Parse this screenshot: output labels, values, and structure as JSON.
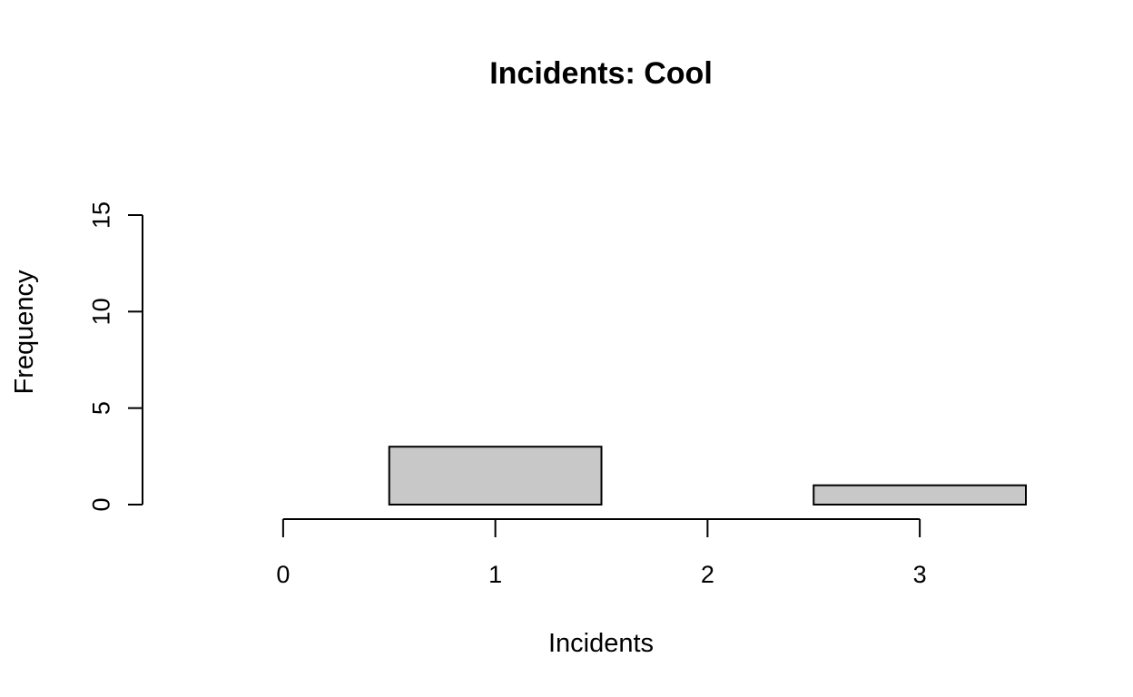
{
  "chart_data": {
    "type": "bar",
    "title": "Incidents: Cool",
    "xlabel": "Incidents",
    "ylabel": "Frequency",
    "categories": [
      "0",
      "1",
      "2",
      "3"
    ],
    "values": [
      0,
      3,
      0,
      1
    ],
    "xlim": [
      -0.5,
      3.5
    ],
    "ylim": [
      0,
      15
    ],
    "yticks": [
      "0",
      "5",
      "10",
      "15"
    ],
    "grid": false,
    "bar_color": "#c8c8c8",
    "edge_color": "#000000"
  }
}
